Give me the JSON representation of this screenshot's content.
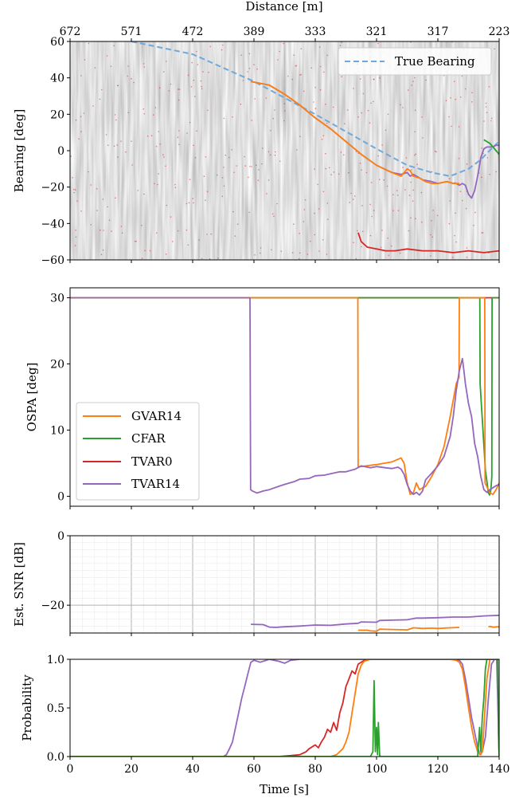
{
  "colors": {
    "gvar14": "#ff7f0e",
    "cfar": "#2ca02c",
    "tvar0": "#d62728",
    "tvar14": "#9467bd",
    "true_bearing": "#6fa8dc",
    "detections": "#d62728"
  },
  "chart_data": [
    {
      "panel": "bearing",
      "type": "line",
      "title": "",
      "xlabel_top": "Distance [m]",
      "top_ticks": [
        "672",
        "571",
        "472",
        "389",
        "333",
        "321",
        "317",
        "223"
      ],
      "ylabel": "Bearing [deg]",
      "xlim": [
        0,
        140
      ],
      "ylim": [
        -60,
        60
      ],
      "yticks": [
        60,
        40,
        20,
        0,
        -20,
        -40,
        -60
      ],
      "ytick_labels": [
        "60",
        "40",
        "20",
        "0",
        "−20",
        "−40",
        "−60"
      ],
      "background": "grayscale bearing-time record",
      "legend": {
        "placement": "top-right",
        "entries": [
          "True Bearing"
        ]
      },
      "series": [
        {
          "name": "True Bearing",
          "style": "dashed",
          "color_key": "true_bearing",
          "x": [
            20,
            40,
            60,
            80,
            100,
            110,
            118,
            124,
            130,
            134,
            138,
            140
          ],
          "y": [
            60,
            53,
            38,
            20,
            1,
            -8,
            -12,
            -14,
            -10,
            -5,
            2,
            5
          ]
        },
        {
          "name": "TVAR14",
          "color_key": "tvar14",
          "x": [
            59,
            62,
            65,
            70,
            75,
            80,
            85,
            90,
            95,
            100,
            105,
            108,
            110,
            111,
            112,
            115,
            118,
            120,
            123,
            125,
            126,
            127,
            128,
            129,
            130,
            131,
            132,
            133,
            134,
            135,
            136,
            137,
            138,
            139,
            140
          ],
          "y": [
            38,
            37,
            36,
            31,
            25,
            18,
            12,
            5,
            -2,
            -8,
            -12,
            -13,
            -12,
            -14,
            -13,
            -16,
            -17,
            -18,
            -17,
            -18,
            -18,
            -19,
            -18,
            -19,
            -24,
            -26,
            -22,
            -14,
            -4,
            1,
            2,
            2,
            2,
            3,
            3
          ]
        },
        {
          "name": "GVAR14",
          "color_key": "gvar14",
          "x": [
            59,
            65,
            70,
            75,
            80,
            85,
            90,
            95,
            100,
            105,
            108,
            109,
            110,
            111,
            112,
            114,
            116,
            118,
            120,
            123,
            125,
            127
          ],
          "y": [
            38,
            36,
            31,
            25,
            18,
            12,
            5,
            -2,
            -8,
            -12,
            -14,
            -12,
            -10,
            -11,
            -14,
            -15,
            -17,
            -18,
            -18,
            -17,
            -18,
            -18
          ]
        },
        {
          "name": "CFAR",
          "color_key": "cfar",
          "x": [
            135,
            136,
            137,
            138,
            139,
            140
          ],
          "y": [
            6,
            5,
            4,
            2,
            0,
            -2
          ]
        },
        {
          "name": "TVAR0",
          "color_key": "tvar0",
          "x": [
            94,
            95,
            97,
            100,
            103,
            106,
            110,
            115,
            120,
            125,
            130,
            135,
            140
          ],
          "y": [
            -45,
            -50,
            -53,
            -54,
            -55,
            -55,
            -54,
            -55,
            -55,
            -56,
            -55,
            -56,
            -55
          ]
        }
      ]
    },
    {
      "panel": "ospa",
      "type": "line",
      "ylabel": "OSPA [deg]",
      "xlim": [
        0,
        140
      ],
      "ylim": [
        -1.5,
        31.5
      ],
      "yticks": [
        0,
        10,
        20,
        30
      ],
      "ytick_labels": [
        "0",
        "10",
        "20",
        "30"
      ],
      "legend": {
        "placement": "lower-left",
        "entries": [
          "GVAR14",
          "CFAR",
          "TVAR0",
          "TVAR14"
        ]
      },
      "series": [
        {
          "name": "TVAR0",
          "color_key": "tvar0",
          "x": [
            0,
            140
          ],
          "y": [
            30,
            30
          ]
        },
        {
          "name": "CFAR",
          "color_key": "cfar",
          "x": [
            0,
            133.7,
            133.8,
            135.5,
            136.5,
            136.9,
            137.3,
            137.6,
            137.7,
            140
          ],
          "y": [
            30,
            30,
            17,
            4,
            0.5,
            0.2,
            1,
            3,
            30,
            30
          ]
        },
        {
          "name": "GVAR14",
          "color_key": "gvar14",
          "x": [
            0,
            93.9,
            94,
            95,
            100,
            105,
            108,
            109,
            110,
            111,
            112,
            113,
            114,
            116,
            118,
            120,
            122,
            124,
            126,
            126.9,
            127,
            135.3,
            135.4,
            137,
            138,
            139,
            140
          ],
          "y": [
            30,
            30,
            4.5,
            4.5,
            4.8,
            5.2,
            5.8,
            5,
            2,
            0.3,
            0.5,
            2,
            1,
            1.5,
            3,
            4.8,
            7.5,
            12,
            17,
            18,
            30,
            30,
            2,
            0.5,
            0.3,
            1,
            2
          ]
        },
        {
          "name": "TVAR14",
          "color_key": "tvar14",
          "x": [
            0,
            58.7,
            58.9,
            59.5,
            61,
            63,
            65,
            68,
            70,
            73,
            75,
            78,
            80,
            83,
            85,
            88,
            90,
            93,
            95,
            98,
            100,
            103,
            105,
            107,
            108,
            109,
            110,
            111,
            112,
            113,
            114,
            115,
            116,
            118,
            120,
            122,
            124,
            125,
            126,
            127,
            128,
            128.5,
            129,
            130,
            131,
            132,
            133,
            134,
            135,
            136,
            137,
            138,
            139,
            140
          ],
          "y": [
            30,
            30,
            1,
            0.8,
            0.5,
            0.8,
            1,
            1.5,
            1.8,
            2.2,
            2.6,
            2.7,
            3.1,
            3.2,
            3.4,
            3.7,
            3.7,
            4.1,
            4.6,
            4.3,
            4.5,
            4.3,
            4.2,
            4.4,
            4.1,
            3.3,
            1.8,
            0.8,
            0.3,
            0.6,
            0.2,
            0.8,
            2.5,
            3.5,
            4.6,
            6,
            9,
            12,
            16,
            19,
            20.8,
            19,
            17,
            14,
            12,
            8,
            6,
            3,
            1,
            0.6,
            1,
            1.3,
            1.6,
            1.8
          ]
        }
      ]
    },
    {
      "panel": "snr",
      "type": "line",
      "ylabel": "Est. SNR [dB]",
      "xlim": [
        0,
        140
      ],
      "ylim": [
        -28,
        0
      ],
      "yticks": [
        0,
        -20
      ],
      "ytick_labels": [
        "0",
        "−20"
      ],
      "grid": true,
      "series": [
        {
          "name": "TVAR14",
          "color_key": "tvar14",
          "x": [
            59,
            63,
            65,
            67,
            70,
            75,
            80,
            85,
            90,
            94,
            95,
            100,
            101,
            105,
            110,
            113,
            115,
            120,
            125,
            130,
            135,
            140
          ],
          "y": [
            -25.5,
            -25.6,
            -26.3,
            -26.4,
            -26.2,
            -26,
            -25.7,
            -25.8,
            -25.4,
            -25.2,
            -24.8,
            -24.9,
            -24.4,
            -24.3,
            -24.2,
            -23.7,
            -23.7,
            -23.6,
            -23.4,
            -23.4,
            -23.1,
            -22.9
          ]
        },
        {
          "name": "GVAR14",
          "color_key": "gvar14",
          "x": [
            94,
            97,
            98,
            100,
            101,
            105,
            110,
            112,
            115,
            118,
            120,
            124,
            127
          ],
          "y": [
            -27.2,
            -27.2,
            -27.4,
            -27.5,
            -26.9,
            -27,
            -27.1,
            -26.5,
            -26.7,
            -26.6,
            -26.7,
            -26.5,
            -26.4
          ]
        },
        {
          "name": "GVAR14",
          "color_key": "gvar14",
          "x": [
            136.5,
            137,
            138,
            140
          ],
          "y": [
            -26.2,
            -26.1,
            -26.3,
            -26.2
          ]
        }
      ]
    },
    {
      "panel": "probability",
      "type": "line",
      "ylabel": "Probability",
      "xlabel": "Time [s]",
      "xlim": [
        0,
        140
      ],
      "ylim": [
        0,
        1
      ],
      "yticks": [
        0,
        0.5,
        1
      ],
      "ytick_labels": [
        "0.0",
        "0.5",
        "1.0"
      ],
      "xticks": [
        0,
        20,
        40,
        60,
        80,
        100,
        120,
        140
      ],
      "xtick_labels": [
        "0",
        "20",
        "40",
        "60",
        "80",
        "100",
        "120",
        "140"
      ],
      "series": [
        {
          "name": "TVAR14",
          "color_key": "tvar14",
          "x": [
            0,
            50,
            51,
            52,
            53,
            54,
            55,
            56,
            57,
            58,
            59,
            60,
            62,
            65,
            68,
            70,
            72,
            75,
            120,
            125,
            127,
            128,
            129,
            130,
            131,
            132,
            133,
            133.7,
            134.5,
            135.5,
            136.5,
            137.5,
            138.5,
            139.2,
            140
          ],
          "y": [
            0,
            0,
            0.02,
            0.08,
            0.15,
            0.3,
            0.45,
            0.6,
            0.72,
            0.85,
            0.97,
            0.99,
            0.97,
            1,
            0.98,
            0.96,
            0.99,
            1,
            1,
            1,
            0.99,
            0.95,
            0.8,
            0.6,
            0.4,
            0.25,
            0.1,
            0.02,
            0.05,
            0.2,
            0.6,
            0.95,
            1,
            1,
            0
          ]
        },
        {
          "name": "TVAR0",
          "color_key": "tvar0",
          "x": [
            0,
            68,
            72,
            75,
            77,
            78,
            80,
            81,
            82,
            83,
            84,
            85,
            86,
            87,
            88,
            89,
            90,
            91,
            92,
            93,
            94,
            96,
            98,
            140
          ],
          "y": [
            0,
            0,
            0.01,
            0.02,
            0.05,
            0.08,
            0.12,
            0.09,
            0.15,
            0.2,
            0.28,
            0.25,
            0.35,
            0.27,
            0.45,
            0.55,
            0.72,
            0.8,
            0.88,
            0.85,
            0.95,
            0.99,
            1,
            1
          ]
        },
        {
          "name": "GVAR14",
          "color_key": "gvar14",
          "x": [
            0,
            85,
            86,
            87,
            88,
            89,
            90,
            91,
            92,
            93,
            94,
            95,
            96,
            97,
            98,
            120,
            124,
            126,
            127,
            128,
            129,
            130,
            131,
            132,
            133,
            134,
            134.5,
            135,
            136,
            137,
            140
          ],
          "y": [
            0,
            0,
            0.01,
            0.02,
            0.05,
            0.08,
            0.15,
            0.25,
            0.45,
            0.65,
            0.85,
            0.94,
            0.98,
            0.99,
            1,
            1,
            1,
            0.99,
            0.97,
            0.9,
            0.72,
            0.5,
            0.3,
            0.15,
            0.05,
            0.02,
            0.05,
            0.3,
            0.8,
            1,
            1
          ]
        },
        {
          "name": "CFAR",
          "color_key": "cfar",
          "x": [
            0,
            98,
            98.8,
            99.2,
            99.6,
            100,
            100.3,
            100.6,
            101,
            101.4,
            102,
            133,
            133.6,
            134,
            134.5,
            135,
            135.5,
            136,
            137,
            139.5,
            139.8,
            140
          ],
          "y": [
            0,
            0,
            0.05,
            0.78,
            0.05,
            0.3,
            0.02,
            0.35,
            0.01,
            0,
            0,
            0,
            0.3,
            0.05,
            0.4,
            0.6,
            0.9,
            1,
            1,
            1,
            0.2,
            0
          ]
        }
      ]
    }
  ]
}
